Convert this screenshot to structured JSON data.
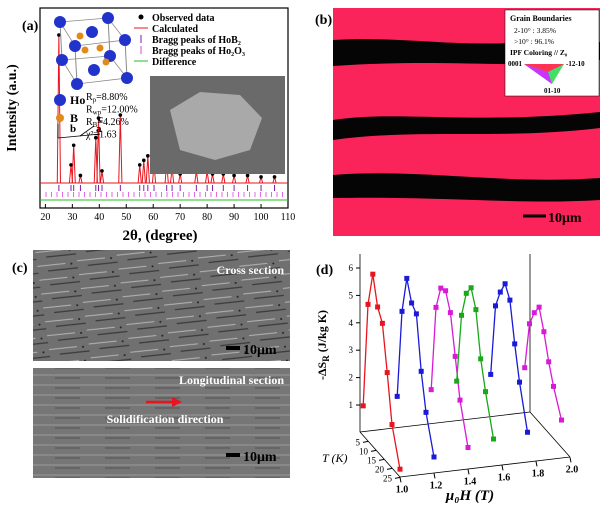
{
  "panel_a": {
    "label": "(a)",
    "y_label": "Intensity (a.u.)",
    "x_label": "2θ, (degree)",
    "xlim": [
      18,
      110
    ],
    "xticks": [
      20,
      30,
      40,
      50,
      60,
      70,
      80,
      90,
      100,
      110
    ],
    "legend": [
      "Observed data",
      "Calculated",
      "Bragg peaks of HoB₂",
      "Bragg peaks of Ho₂O₃",
      "Difference"
    ],
    "atoms": [
      "Ho",
      "B"
    ],
    "cell_axes": [
      "a",
      "b",
      "c"
    ],
    "fit": [
      {
        "symbol": "R",
        "sub": "p",
        "text": "=8.80%"
      },
      {
        "symbol": "R",
        "sub": "wp",
        "text": "=12.00%"
      },
      {
        "symbol": "R",
        "sub": "B",
        "text": "=4.26%"
      },
      {
        "text": "χ²=1.63"
      }
    ],
    "peaks": {
      "two_theta": [
        25,
        29.5,
        30.5,
        33,
        38.7,
        39.7,
        41,
        47.8,
        55,
        56.5,
        58,
        60.3,
        65,
        67,
        70,
        76,
        80,
        82,
        86,
        90,
        95,
        100,
        105
      ],
      "intensity": [
        98,
        12,
        25,
        5,
        30,
        43,
        8,
        45,
        12,
        15,
        18,
        12,
        14,
        10,
        6,
        8,
        8,
        6,
        6,
        5,
        5,
        4,
        4
      ]
    }
  },
  "panel_b": {
    "label": "(b)",
    "legend_title": "Grain Boundaries",
    "legend_rows": [
      "2-10° : 3.85%",
      ">10° : 96.1%"
    ],
    "ipf_title": "IPF Coloring // Z₀",
    "ipf_corners": [
      "0001",
      "-12-10",
      "01-10"
    ],
    "scale": "10μm"
  },
  "panel_c": {
    "label": "(c)",
    "top_caption": "Cross section",
    "top_scale": "10μm",
    "bottom_caption": "Longitudinal section",
    "direction": "Solidification direction",
    "bottom_scale": "10μm"
  },
  "panel_d": {
    "label": "(d)",
    "z_label": {
      "main": "-ΔS",
      "sub": "R",
      "unit": " (J/kg K)"
    },
    "zticks": [
      1,
      2,
      3,
      4,
      5,
      6
    ],
    "t_label": "T (K)",
    "tticks": [
      5,
      10,
      15,
      20,
      25
    ],
    "x_label": "μ₀H (T)",
    "xticks": [
      {
        "value": 1,
        "label": "1.0"
      },
      {
        "value": 1.2,
        "label": "1.2"
      },
      {
        "value": 1.4,
        "label": "1.4"
      },
      {
        "value": 1.6,
        "label": "1.6"
      },
      {
        "value": 1.8,
        "label": "1.8"
      },
      {
        "value": 2,
        "label": "2.0"
      }
    ],
    "T": [
      2,
      5,
      8,
      11,
      14,
      17,
      20,
      25
    ],
    "series": [
      {
        "color": "#e8141e",
        "field": 1.0,
        "values": [
          1.1,
          5.0,
          6.3,
          5.3,
          4.9,
          3.3,
          1.6,
          0.3
        ]
      },
      {
        "color": "#1a1ad8",
        "field": 1.2,
        "values": [
          1.3,
          4.6,
          6.0,
          5.3,
          5.1,
          3.2,
          1.9,
          0.6
        ]
      },
      {
        "color": "#d81ad8",
        "field": 1.4,
        "values": [
          1.4,
          4.6,
          5.5,
          5.6,
          5.0,
          3.6,
          2.2,
          0.8
        ]
      },
      {
        "color": "#18a818",
        "field": 1.55,
        "values": [
          1.6,
          4.2,
          5.2,
          5.6,
          5.0,
          3.4,
          2.4,
          1.0
        ]
      },
      {
        "color": "#1a1ad8",
        "field": 1.75,
        "values": [
          1.7,
          4.4,
          5.1,
          5.6,
          5.2,
          3.8,
          2.6,
          1.1
        ]
      },
      {
        "color": "#d81ad8",
        "field": 1.95,
        "values": [
          1.8,
          3.6,
          4.2,
          4.6,
          3.9,
          3.0,
          2.3,
          1.4
        ]
      }
    ]
  }
}
